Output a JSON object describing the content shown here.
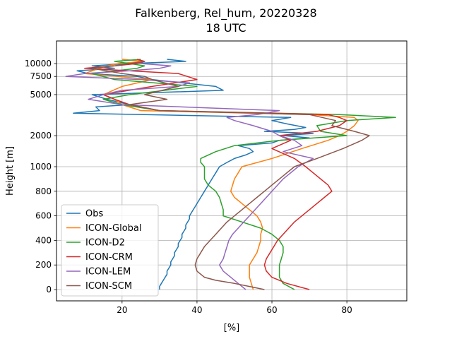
{
  "chart_data": {
    "type": "line",
    "title": "Falkenberg, Rel_hum, 20220328",
    "subtitle": "18 UTC",
    "xlabel": "[%]",
    "ylabel": "Height [m]",
    "xlim": [
      2.5,
      96
    ],
    "xticks": [
      20,
      40,
      60,
      80
    ],
    "yticks": [
      0,
      200,
      400,
      600,
      800,
      1000,
      2000,
      5000,
      7500,
      10000
    ],
    "ytick_labels": [
      "0",
      "200",
      "400",
      "600",
      "800",
      "1000",
      "2000",
      "5000",
      "7500",
      "10000"
    ],
    "y_scale": "piecewise: linear 0-1000 m, logarithmic above 1000 m",
    "grid": true,
    "legend_position": "lower-left",
    "series": [
      {
        "name": "Obs",
        "color": "#1f77b4",
        "points": [
          [
            30,
            0
          ],
          [
            30,
            25
          ],
          [
            30.5,
            50
          ],
          [
            31,
            75
          ],
          [
            31.5,
            100
          ],
          [
            32,
            125
          ],
          [
            32,
            150
          ],
          [
            32.5,
            175
          ],
          [
            33,
            200
          ],
          [
            33,
            225
          ],
          [
            33.5,
            250
          ],
          [
            34,
            275
          ],
          [
            34,
            300
          ],
          [
            34.5,
            325
          ],
          [
            35,
            350
          ],
          [
            35,
            375
          ],
          [
            35.5,
            400
          ],
          [
            36,
            425
          ],
          [
            36,
            450
          ],
          [
            36.5,
            475
          ],
          [
            37,
            500
          ],
          [
            37,
            525
          ],
          [
            37.5,
            550
          ],
          [
            38,
            575
          ],
          [
            38,
            600
          ],
          [
            38.5,
            625
          ],
          [
            39,
            650
          ],
          [
            39.5,
            675
          ],
          [
            40,
            700
          ],
          [
            40.5,
            725
          ],
          [
            41,
            750
          ],
          [
            42,
            800
          ],
          [
            43,
            850
          ],
          [
            44,
            900
          ],
          [
            45,
            950
          ],
          [
            46,
            1000
          ],
          [
            48,
            1100
          ],
          [
            50,
            1200
          ],
          [
            53,
            1300
          ],
          [
            55,
            1400
          ],
          [
            54,
            1500
          ],
          [
            51,
            1600
          ],
          [
            60,
            1700
          ],
          [
            62,
            1800
          ],
          [
            70,
            1900
          ],
          [
            63,
            2000
          ],
          [
            71,
            2100
          ],
          [
            58,
            2200
          ],
          [
            66,
            2300
          ],
          [
            69,
            2400
          ],
          [
            64,
            2600
          ],
          [
            60,
            2800
          ],
          [
            65,
            3000
          ],
          [
            7,
            3300
          ],
          [
            14,
            3500
          ],
          [
            13,
            3800
          ],
          [
            22,
            4000
          ],
          [
            16,
            4500
          ],
          [
            12,
            5000
          ],
          [
            47,
            5500
          ],
          [
            45,
            6000
          ],
          [
            36,
            6500
          ],
          [
            28,
            7000
          ],
          [
            24,
            7500
          ],
          [
            11,
            8000
          ],
          [
            8,
            8500
          ],
          [
            18,
            9000
          ],
          [
            12,
            9500
          ],
          [
            22,
            10000
          ],
          [
            37,
            10500
          ],
          [
            32,
            11000
          ]
        ]
      },
      {
        "name": "ICON-Global",
        "color": "#ff7f0e",
        "points": [
          [
            55,
            0
          ],
          [
            54.5,
            50
          ],
          [
            54,
            100
          ],
          [
            54,
            150
          ],
          [
            54,
            200
          ],
          [
            55,
            250
          ],
          [
            56,
            300
          ],
          [
            56.5,
            350
          ],
          [
            57,
            400
          ],
          [
            57,
            450
          ],
          [
            57.5,
            500
          ],
          [
            57,
            550
          ],
          [
            56,
            600
          ],
          [
            54,
            650
          ],
          [
            52,
            700
          ],
          [
            50,
            750
          ],
          [
            49,
            800
          ],
          [
            49.5,
            850
          ],
          [
            50,
            900
          ],
          [
            51,
            950
          ],
          [
            52,
            1000
          ],
          [
            60,
            1200
          ],
          [
            68,
            1500
          ],
          [
            75,
            1800
          ],
          [
            78,
            2000
          ],
          [
            80,
            2200
          ],
          [
            82,
            2500
          ],
          [
            83,
            2800
          ],
          [
            82,
            3000
          ],
          [
            70,
            3200
          ],
          [
            25,
            3500
          ],
          [
            20,
            4000
          ],
          [
            18,
            4500
          ],
          [
            15,
            5000
          ],
          [
            20,
            6000
          ],
          [
            28,
            7000
          ],
          [
            10,
            8000
          ],
          [
            14,
            9000
          ],
          [
            16,
            9500
          ],
          [
            19,
            10000
          ],
          [
            26,
            10500
          ],
          [
            20,
            11000
          ]
        ]
      },
      {
        "name": "ICON-D2",
        "color": "#2ca02c",
        "points": [
          [
            66,
            0
          ],
          [
            63,
            50
          ],
          [
            62,
            100
          ],
          [
            62,
            150
          ],
          [
            62,
            200
          ],
          [
            62.5,
            250
          ],
          [
            63,
            300
          ],
          [
            63,
            350
          ],
          [
            62,
            400
          ],
          [
            60,
            450
          ],
          [
            57,
            500
          ],
          [
            52,
            550
          ],
          [
            47,
            600
          ],
          [
            47,
            650
          ],
          [
            46.5,
            700
          ],
          [
            46,
            750
          ],
          [
            45,
            800
          ],
          [
            43,
            850
          ],
          [
            42,
            900
          ],
          [
            42,
            950
          ],
          [
            42,
            1000
          ],
          [
            41,
            1100
          ],
          [
            41,
            1200
          ],
          [
            45,
            1400
          ],
          [
            50,
            1600
          ],
          [
            62,
            1800
          ],
          [
            80,
            2000
          ],
          [
            73,
            2200
          ],
          [
            72,
            2500
          ],
          [
            80,
            2800
          ],
          [
            93,
            3000
          ],
          [
            78,
            3200
          ],
          [
            30,
            3500
          ],
          [
            20,
            4000
          ],
          [
            15,
            4500
          ],
          [
            22,
            5000
          ],
          [
            40,
            6000
          ],
          [
            18,
            7000
          ],
          [
            12,
            8000
          ],
          [
            24,
            9000
          ],
          [
            26,
            9500
          ],
          [
            22,
            10000
          ],
          [
            18,
            10500
          ],
          [
            25,
            11000
          ]
        ]
      },
      {
        "name": "ICON-CRM",
        "color": "#d62728",
        "points": [
          [
            70,
            0
          ],
          [
            64,
            50
          ],
          [
            60,
            100
          ],
          [
            58.5,
            150
          ],
          [
            58,
            200
          ],
          [
            58.5,
            250
          ],
          [
            59.5,
            300
          ],
          [
            60.5,
            350
          ],
          [
            61.5,
            400
          ],
          [
            63,
            450
          ],
          [
            64.5,
            500
          ],
          [
            66,
            550
          ],
          [
            68,
            600
          ],
          [
            70,
            650
          ],
          [
            72,
            700
          ],
          [
            74,
            750
          ],
          [
            76,
            800
          ],
          [
            75,
            850
          ],
          [
            73,
            900
          ],
          [
            71,
            950
          ],
          [
            69,
            1000
          ],
          [
            66,
            1200
          ],
          [
            60,
            1500
          ],
          [
            65,
            1800
          ],
          [
            62,
            2000
          ],
          [
            72,
            2200
          ],
          [
            78,
            2500
          ],
          [
            80,
            2800
          ],
          [
            78,
            3000
          ],
          [
            75,
            3200
          ],
          [
            30,
            3500
          ],
          [
            22,
            4000
          ],
          [
            18,
            4500
          ],
          [
            15,
            5000
          ],
          [
            28,
            6000
          ],
          [
            40,
            7000
          ],
          [
            35,
            8000
          ],
          [
            10,
            9000
          ],
          [
            18,
            9500
          ],
          [
            24,
            10000
          ],
          [
            26,
            10500
          ],
          [
            24,
            11000
          ]
        ]
      },
      {
        "name": "ICON-LEM",
        "color": "#9467bd",
        "points": [
          [
            53,
            0
          ],
          [
            51,
            50
          ],
          [
            49,
            100
          ],
          [
            47,
            150
          ],
          [
            46,
            200
          ],
          [
            47,
            250
          ],
          [
            47.5,
            300
          ],
          [
            48,
            350
          ],
          [
            48.5,
            400
          ],
          [
            49.5,
            450
          ],
          [
            51,
            500
          ],
          [
            52.5,
            550
          ],
          [
            54,
            600
          ],
          [
            55.5,
            650
          ],
          [
            57,
            700
          ],
          [
            58.5,
            750
          ],
          [
            60,
            800
          ],
          [
            61.5,
            850
          ],
          [
            63,
            900
          ],
          [
            65,
            950
          ],
          [
            67,
            1000
          ],
          [
            71,
            1200
          ],
          [
            63,
            1400
          ],
          [
            68,
            1600
          ],
          [
            66,
            1800
          ],
          [
            62,
            2000
          ],
          [
            60,
            2200
          ],
          [
            55,
            2500
          ],
          [
            50,
            2800
          ],
          [
            48,
            3000
          ],
          [
            56,
            3200
          ],
          [
            62,
            3500
          ],
          [
            20,
            4000
          ],
          [
            11,
            4500
          ],
          [
            15,
            5000
          ],
          [
            20,
            5500
          ],
          [
            35,
            6000
          ],
          [
            38,
            6500
          ],
          [
            25,
            7000
          ],
          [
            5,
            7500
          ],
          [
            10,
            8000
          ],
          [
            22,
            8500
          ],
          [
            30,
            9000
          ],
          [
            33,
            9500
          ],
          [
            25,
            10000
          ]
        ]
      },
      {
        "name": "ICON-SCM",
        "color": "#8c564b",
        "points": [
          [
            58,
            0
          ],
          [
            54,
            25
          ],
          [
            50,
            50
          ],
          [
            45,
            75
          ],
          [
            42,
            100
          ],
          [
            40,
            150
          ],
          [
            39.5,
            200
          ],
          [
            40,
            250
          ],
          [
            41,
            300
          ],
          [
            42,
            350
          ],
          [
            43.5,
            400
          ],
          [
            45,
            450
          ],
          [
            46.5,
            500
          ],
          [
            48,
            550
          ],
          [
            50,
            600
          ],
          [
            52,
            650
          ],
          [
            54,
            700
          ],
          [
            56,
            750
          ],
          [
            58,
            800
          ],
          [
            60,
            850
          ],
          [
            62,
            900
          ],
          [
            64,
            950
          ],
          [
            66,
            1000
          ],
          [
            72,
            1200
          ],
          [
            79,
            1500
          ],
          [
            84,
            1800
          ],
          [
            86,
            2000
          ],
          [
            82,
            2200
          ],
          [
            76,
            2500
          ],
          [
            77,
            2800
          ],
          [
            70,
            3200
          ],
          [
            30,
            3500
          ],
          [
            22,
            4000
          ],
          [
            32,
            4500
          ],
          [
            26,
            5000
          ],
          [
            35,
            6000
          ],
          [
            28,
            7000
          ],
          [
            26,
            7500
          ],
          [
            20,
            8000
          ],
          [
            12,
            9000
          ],
          [
            18,
            9500
          ],
          [
            26,
            10500
          ]
        ]
      }
    ]
  }
}
